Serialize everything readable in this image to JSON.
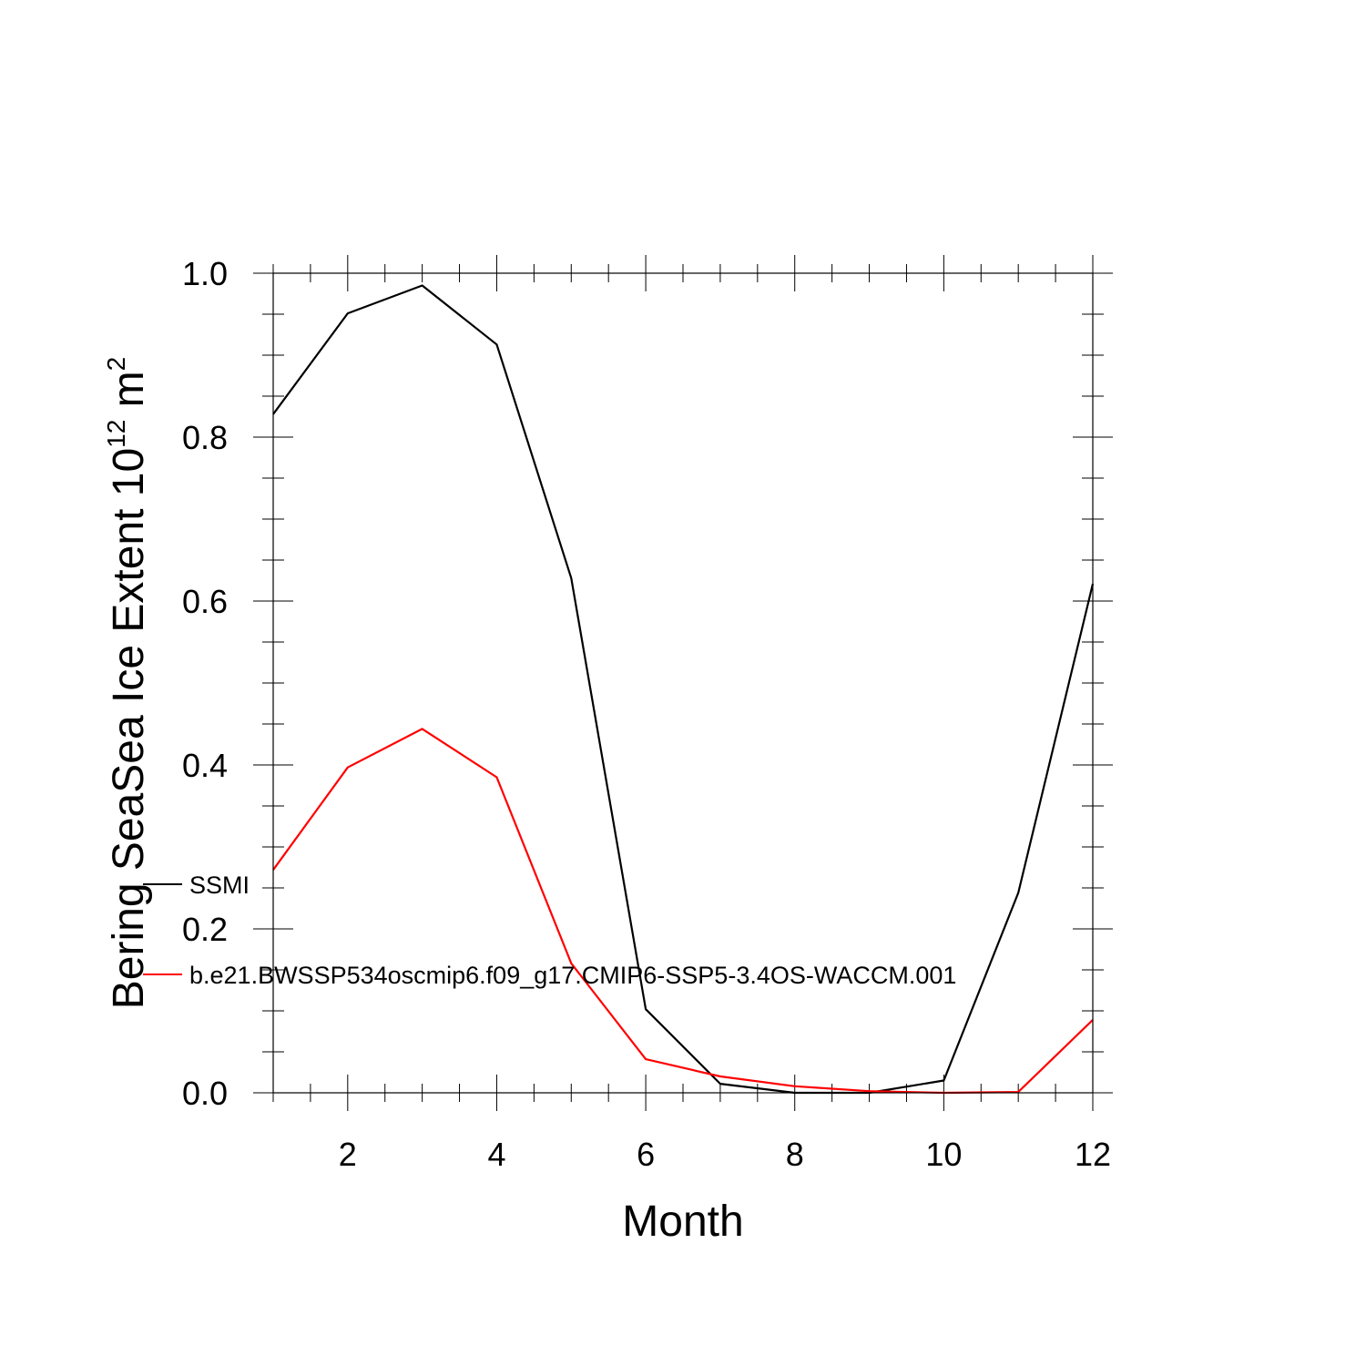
{
  "chart_data": {
    "type": "line",
    "xlabel": "Month",
    "ylabel": {
      "main": "Bering SeaSea Ice Extent 10",
      "exponent": "12",
      "unit": " m",
      "unit_exponent": "2"
    },
    "xlim": [
      1,
      12
    ],
    "ylim": [
      0.0,
      1.0
    ],
    "x_ticks": [
      2,
      4,
      6,
      8,
      10,
      12
    ],
    "x_tick_labels": [
      "2",
      "4",
      "6",
      "8",
      "10",
      "12"
    ],
    "y_ticks": [
      0.0,
      0.2,
      0.4,
      0.6,
      0.8,
      1.0
    ],
    "y_tick_labels": [
      "0.0",
      "0.2",
      "0.4",
      "0.6",
      "0.8",
      "1.0"
    ],
    "grid": false,
    "legend_position": "left",
    "x": [
      1,
      2,
      3,
      4,
      5,
      6,
      7,
      8,
      9,
      10,
      11,
      12
    ],
    "series": [
      {
        "name": "SSMI",
        "color": "#000000",
        "values": [
          0.828,
          0.951,
          0.985,
          0.913,
          0.628,
          0.102,
          0.011,
          0.0,
          0.0,
          0.015,
          0.244,
          0.621
        ]
      },
      {
        "name": "b.e21.BWSSP534oscmip6.f09_g17.CMIP6-SSP5-3.4OS-WACCM.001",
        "color": "#ff0000",
        "values": [
          0.272,
          0.397,
          0.444,
          0.385,
          0.158,
          0.041,
          0.02,
          0.008,
          0.002,
          0.0,
          0.001,
          0.089
        ]
      }
    ]
  }
}
